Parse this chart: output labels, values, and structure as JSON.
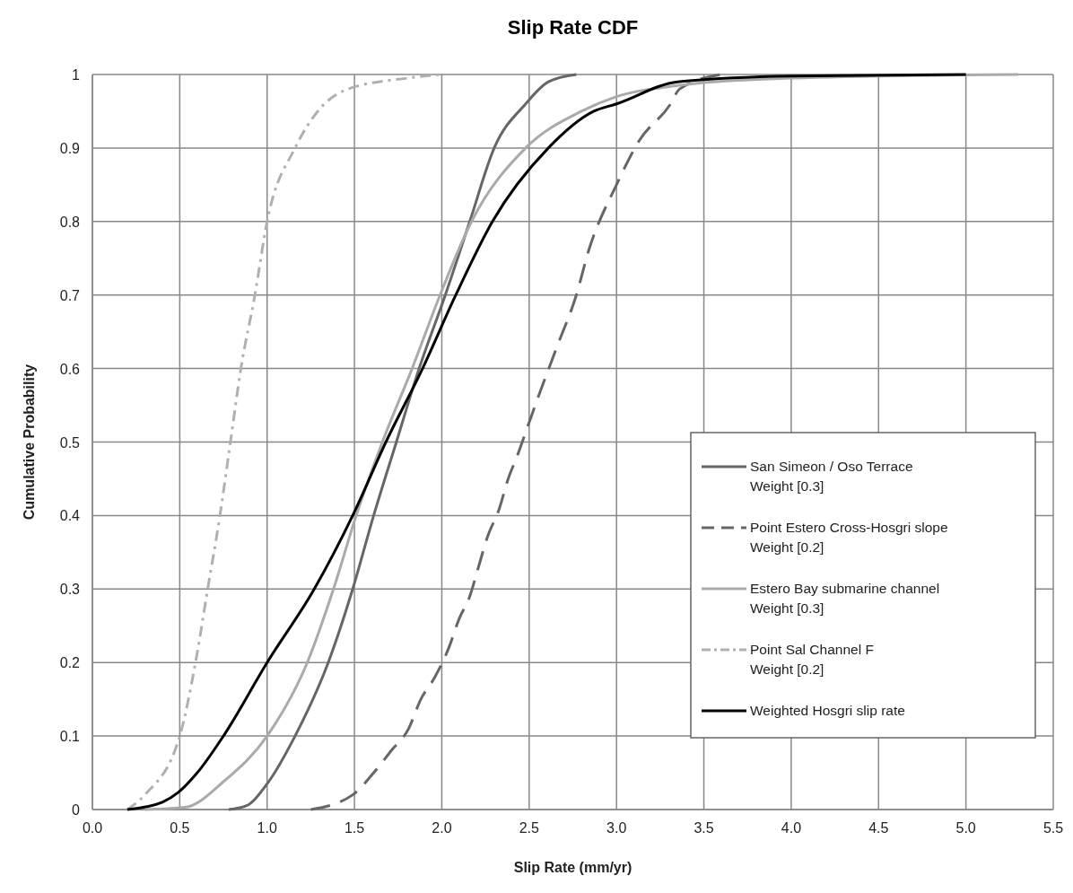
{
  "chart_data": {
    "type": "line",
    "title": "Slip Rate CDF",
    "xlabel": "Slip Rate (mm/yr)",
    "ylabel": "Cumulative Probability",
    "xlim": [
      0,
      5.5
    ],
    "xticks": [
      {
        "value": 0,
        "label": "0.0"
      },
      {
        "value": 0.5,
        "label": "0.5"
      },
      {
        "value": 1,
        "label": "1.0"
      },
      {
        "value": 1.5,
        "label": "1.5"
      },
      {
        "value": 2,
        "label": "2.0"
      },
      {
        "value": 2.5,
        "label": "2.5"
      },
      {
        "value": 3,
        "label": "3.0"
      },
      {
        "value": 3.5,
        "label": "3.5"
      },
      {
        "value": 4,
        "label": "4.0"
      },
      {
        "value": 4.5,
        "label": "4.5"
      },
      {
        "value": 5,
        "label": "5.0"
      },
      {
        "value": 5.5,
        "label": "5.5"
      }
    ],
    "ylim": [
      0,
      1
    ],
    "yticks": [
      0,
      0.1,
      0.2,
      0.3,
      0.4,
      0.5,
      0.6,
      0.7,
      0.8,
      0.9,
      1
    ],
    "grid": true,
    "legend": "bottom right",
    "marker": "none",
    "series": [
      {
        "name": "San Simeon / Oso Terrace\nWeight [0.3]",
        "color": "#666666",
        "line_style": "solid",
        "x": [
          0.78,
          0.88,
          1.0,
          1.16,
          1.35,
          1.49,
          1.61,
          1.74,
          1.87,
          2.02,
          2.16,
          2.3,
          2.48,
          2.61,
          2.77
        ],
        "values": [
          0,
          0.005,
          0.035,
          0.1,
          0.2,
          0.3,
          0.4,
          0.5,
          0.6,
          0.7,
          0.8,
          0.9,
          0.96,
          0.99,
          1
        ]
      },
      {
        "name": "Point Estero Cross-Hosgri slope\nWeight [0.2]",
        "color": "#666666",
        "line_style": "dashed",
        "x": [
          1.25,
          1.49,
          1.61,
          1.71,
          1.81,
          1.88,
          1.96,
          2.04,
          2.1,
          2.16,
          2.21,
          2.26,
          2.33,
          2.38,
          2.43,
          2.49,
          2.55,
          2.66,
          2.77,
          2.84,
          3.0,
          3.13,
          3.31,
          3.36,
          3.6
        ],
        "values": [
          0,
          0.02,
          0.05,
          0.08,
          0.11,
          0.15,
          0.18,
          0.22,
          0.26,
          0.29,
          0.33,
          0.37,
          0.41,
          0.45,
          0.48,
          0.52,
          0.56,
          0.63,
          0.7,
          0.76,
          0.85,
          0.91,
          0.96,
          0.98,
          1
        ]
      },
      {
        "name": "Estero Bay submarine channel\nWeight [0.3]",
        "color": "#aaaaaa",
        "line_style": "solid",
        "x": [
          0.3,
          0.53,
          0.76,
          1.0,
          1.23,
          1.38,
          1.51,
          1.66,
          1.83,
          1.99,
          2.17,
          2.48,
          2.8,
          3.0,
          3.35,
          4.0,
          5.3
        ],
        "values": [
          0,
          0.003,
          0.04,
          0.1,
          0.2,
          0.3,
          0.4,
          0.5,
          0.6,
          0.7,
          0.8,
          0.9,
          0.95,
          0.97,
          0.985,
          0.995,
          1
        ]
      },
      {
        "name": "Point Sal Channel F\nWeight [0.2]",
        "color": "#b0b0b0",
        "line_style": "dotted",
        "x": [
          0.2,
          0.3,
          0.5,
          0.59,
          0.66,
          0.73,
          0.79,
          0.85,
          0.93,
          1.0,
          1.16,
          1.29,
          1.46,
          1.8,
          2.0
        ],
        "values": [
          0,
          0.02,
          0.1,
          0.2,
          0.3,
          0.4,
          0.5,
          0.6,
          0.7,
          0.8,
          0.9,
          0.95,
          0.98,
          0.995,
          1
        ]
      },
      {
        "name": "Weighted Hosgri slip rate",
        "color": "#000000",
        "line_style": "solid",
        "x": [
          0.2,
          0.4,
          0.49,
          0.6,
          0.75,
          1.0,
          1.27,
          1.49,
          1.68,
          1.89,
          2.08,
          2.29,
          2.61,
          2.87,
          3.0,
          3.35,
          4.0,
          5.0
        ],
        "values": [
          0,
          0.01,
          0.023,
          0.05,
          0.1,
          0.2,
          0.3,
          0.4,
          0.5,
          0.6,
          0.7,
          0.8,
          0.9,
          0.95,
          0.96,
          0.99,
          0.998,
          1
        ]
      }
    ]
  }
}
